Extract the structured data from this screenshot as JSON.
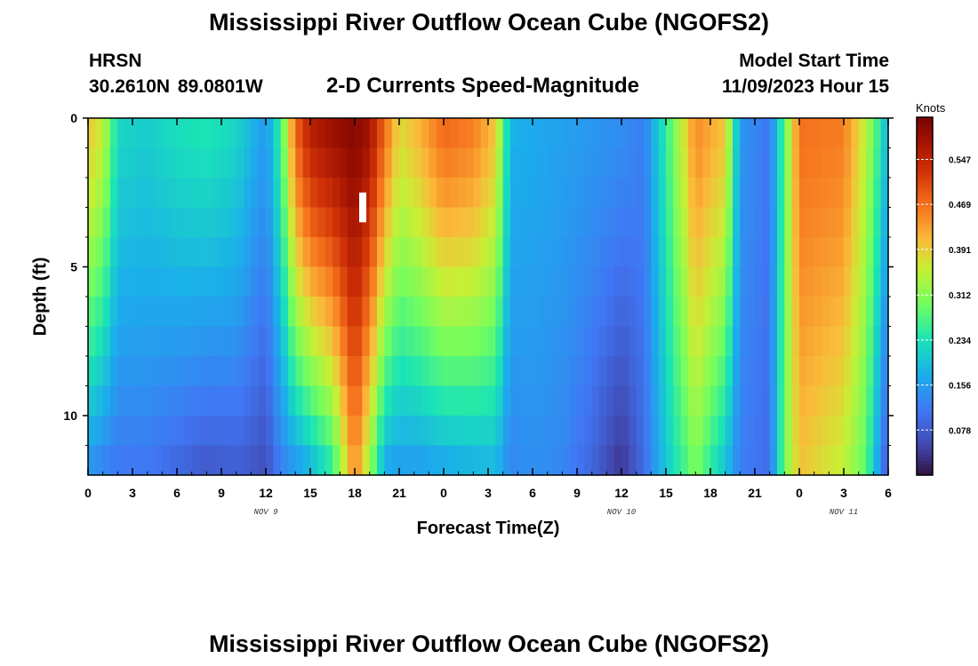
{
  "header": {
    "title": "Mississippi River Outflow Ocean Cube (NGOFS2)",
    "station_name": "HRSN",
    "station_coords": "30.2610N  89.0801W",
    "subtitle": "2-D Currents Speed-Magnitude",
    "model_label": "Model Start Time",
    "model_time": "11/09/2023 Hour 15"
  },
  "footer": {
    "title": "Mississippi River Outflow Ocean Cube (NGOFS2)"
  },
  "chart_data": {
    "type": "heatmap",
    "title": "2-D Currents Speed-Magnitude",
    "xlabel": "Forecast Time(Z)",
    "ylabel": "Depth (ft)",
    "units": "Knots",
    "x_range_hours": [
      0,
      54
    ],
    "y_range_ft": [
      0,
      12
    ],
    "y_ticks": [
      0,
      5,
      10
    ],
    "x_ticks": [
      {
        "h": 0,
        "label": "0"
      },
      {
        "h": 3,
        "label": "3"
      },
      {
        "h": 6,
        "label": "6"
      },
      {
        "h": 9,
        "label": "9"
      },
      {
        "h": 12,
        "label": "12"
      },
      {
        "h": 15,
        "label": "15"
      },
      {
        "h": 18,
        "label": "18"
      },
      {
        "h": 21,
        "label": "21"
      },
      {
        "h": 24,
        "label": "0"
      },
      {
        "h": 27,
        "label": "3"
      },
      {
        "h": 30,
        "label": "6"
      },
      {
        "h": 33,
        "label": "9"
      },
      {
        "h": 36,
        "label": "12"
      },
      {
        "h": 39,
        "label": "15"
      },
      {
        "h": 42,
        "label": "18"
      },
      {
        "h": 45,
        "label": "21"
      },
      {
        "h": 48,
        "label": "0"
      },
      {
        "h": 51,
        "label": "3"
      },
      {
        "h": 54,
        "label": "6"
      }
    ],
    "date_labels": [
      {
        "h": 12,
        "label": "NOV 9"
      },
      {
        "h": 36,
        "label": "NOV 10"
      },
      {
        "h": 51,
        "label": "NOV 11"
      }
    ],
    "colorbar": {
      "min": 0.0,
      "max": 0.62,
      "ticks": [
        0.078,
        0.156,
        0.234,
        0.312,
        0.391,
        0.469,
        0.547
      ]
    },
    "speed_profile_knots": [
      {
        "h": 0,
        "surface": 0.4,
        "bottom": 0.14
      },
      {
        "h": 1,
        "surface": 0.36,
        "bottom": 0.12
      },
      {
        "h": 2,
        "surface": 0.22,
        "bottom": 0.11
      },
      {
        "h": 4,
        "surface": 0.21,
        "bottom": 0.11
      },
      {
        "h": 6,
        "surface": 0.23,
        "bottom": 0.09
      },
      {
        "h": 8,
        "surface": 0.24,
        "bottom": 0.07
      },
      {
        "h": 10,
        "surface": 0.22,
        "bottom": 0.08
      },
      {
        "h": 12,
        "surface": 0.15,
        "bottom": 0.06
      },
      {
        "h": 13,
        "surface": 0.26,
        "bottom": 0.12
      },
      {
        "h": 14,
        "surface": 0.48,
        "bottom": 0.14
      },
      {
        "h": 15,
        "surface": 0.56,
        "bottom": 0.17
      },
      {
        "h": 16.5,
        "surface": 0.59,
        "bottom": 0.24
      },
      {
        "h": 18,
        "surface": 0.61,
        "bottom": 0.45
      },
      {
        "h": 19,
        "surface": 0.58,
        "bottom": 0.32
      },
      {
        "h": 20,
        "surface": 0.48,
        "bottom": 0.16
      },
      {
        "h": 21,
        "surface": 0.38,
        "bottom": 0.15
      },
      {
        "h": 22.5,
        "surface": 0.42,
        "bottom": 0.15
      },
      {
        "h": 24,
        "surface": 0.48,
        "bottom": 0.16
      },
      {
        "h": 26,
        "surface": 0.46,
        "bottom": 0.17
      },
      {
        "h": 27.5,
        "surface": 0.4,
        "bottom": 0.18
      },
      {
        "h": 28.5,
        "surface": 0.18,
        "bottom": 0.13
      },
      {
        "h": 30,
        "surface": 0.17,
        "bottom": 0.14
      },
      {
        "h": 32,
        "surface": 0.16,
        "bottom": 0.13
      },
      {
        "h": 34,
        "surface": 0.15,
        "bottom": 0.09
      },
      {
        "h": 36,
        "surface": 0.14,
        "bottom": 0.03
      },
      {
        "h": 37.5,
        "surface": 0.12,
        "bottom": 0.1
      },
      {
        "h": 39,
        "surface": 0.25,
        "bottom": 0.2
      },
      {
        "h": 41,
        "surface": 0.45,
        "bottom": 0.3
      },
      {
        "h": 43,
        "surface": 0.4,
        "bottom": 0.19
      },
      {
        "h": 44,
        "surface": 0.15,
        "bottom": 0.12
      },
      {
        "h": 46,
        "surface": 0.11,
        "bottom": 0.1
      },
      {
        "h": 47,
        "surface": 0.28,
        "bottom": 0.3
      },
      {
        "h": 48,
        "surface": 0.47,
        "bottom": 0.4
      },
      {
        "h": 51,
        "surface": 0.46,
        "bottom": 0.35
      },
      {
        "h": 52.5,
        "surface": 0.35,
        "bottom": 0.28
      },
      {
        "h": 54,
        "surface": 0.18,
        "bottom": 0.06
      }
    ]
  }
}
